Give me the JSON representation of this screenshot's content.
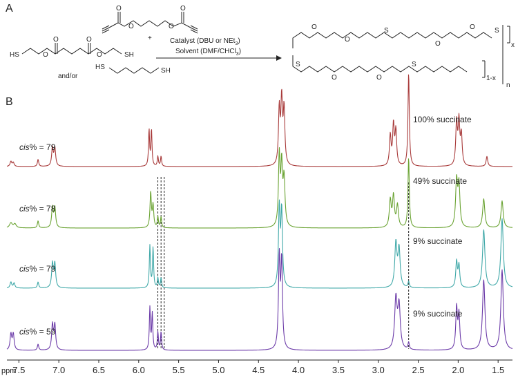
{
  "figure": {
    "panel_a_label": "A",
    "panel_b_label": "B"
  },
  "scheme": {
    "plus": "+",
    "and_or": "and/or",
    "sh": "SH",
    "hs": "HS",
    "o": "O",
    "s": "S",
    "x": "x",
    "one_minus_x": "1-x",
    "n": "n",
    "catalyst": [
      "Catalyst (DBU or NEt",
      "3",
      ")"
    ],
    "solvent": [
      "Solvent (DMF/CHCl",
      "3",
      ")"
    ]
  },
  "chart_data": {
    "type": "line",
    "title": "",
    "xlabel": "ppm",
    "ylabel": "",
    "xlim": [
      7.65,
      1.32
    ],
    "x_reversed": true,
    "ticks": [
      7.5,
      7.0,
      6.5,
      6.0,
      5.5,
      5.0,
      4.5,
      4.0,
      3.5,
      3.0,
      2.5,
      2.0,
      1.5
    ],
    "tick_labels": [
      "7.5",
      "7.0",
      "6.5",
      "6.0",
      "5.5",
      "5.0",
      "4.5",
      "4.0",
      "3.5",
      "3.0",
      "2.5",
      "2.0",
      "1.5"
    ],
    "reference_lines_ppm": [
      5.76,
      5.72,
      5.68,
      2.62
    ],
    "series": [
      {
        "name": "100% succinate",
        "cis_label": "cis% = 79",
        "color": "#a83a3a",
        "peaks": [
          [
            7.6,
            0.05,
            0.012
          ],
          [
            7.57,
            0.04,
            0.012
          ],
          [
            7.26,
            0.07,
            0.01
          ],
          [
            7.08,
            0.18,
            0.012
          ],
          [
            7.05,
            0.18,
            0.012
          ],
          [
            5.87,
            0.36,
            0.008
          ],
          [
            5.84,
            0.36,
            0.008
          ],
          [
            5.76,
            0.1,
            0.008
          ],
          [
            5.72,
            0.1,
            0.008
          ],
          [
            4.24,
            0.55,
            0.012
          ],
          [
            4.21,
            0.63,
            0.012
          ],
          [
            4.18,
            0.55,
            0.012
          ],
          [
            2.85,
            0.3,
            0.012
          ],
          [
            2.81,
            0.4,
            0.012
          ],
          [
            2.78,
            0.34,
            0.012
          ],
          [
            2.62,
            0.93,
            0.01
          ],
          [
            2.02,
            0.43,
            0.012
          ],
          [
            1.99,
            0.43,
            0.012
          ],
          [
            1.96,
            0.3,
            0.012
          ],
          [
            1.64,
            0.1,
            0.012
          ]
        ]
      },
      {
        "name": "49% succinate",
        "cis_label": "cis% = 78",
        "color": "#6aa332",
        "peaks": [
          [
            7.6,
            0.05,
            0.02
          ],
          [
            7.55,
            0.04,
            0.02
          ],
          [
            7.26,
            0.07,
            0.01
          ],
          [
            7.08,
            0.2,
            0.012
          ],
          [
            7.05,
            0.2,
            0.012
          ],
          [
            5.85,
            0.35,
            0.01
          ],
          [
            5.82,
            0.22,
            0.01
          ],
          [
            5.76,
            0.11,
            0.008
          ],
          [
            5.72,
            0.11,
            0.008
          ],
          [
            4.24,
            0.7,
            0.012
          ],
          [
            4.21,
            0.58,
            0.012
          ],
          [
            4.18,
            0.47,
            0.014
          ],
          [
            2.85,
            0.27,
            0.014
          ],
          [
            2.81,
            0.31,
            0.014
          ],
          [
            2.76,
            0.22,
            0.014
          ],
          [
            2.62,
            0.7,
            0.01
          ],
          [
            2.02,
            0.46,
            0.014
          ],
          [
            1.99,
            0.42,
            0.014
          ],
          [
            1.68,
            0.29,
            0.016
          ],
          [
            1.45,
            0.27,
            0.016
          ]
        ]
      },
      {
        "name": "9% succinate",
        "cis_label": "cis% = 79",
        "color": "#3fa8a8",
        "peaks": [
          [
            7.6,
            0.06,
            0.012
          ],
          [
            7.56,
            0.05,
            0.012
          ],
          [
            7.26,
            0.06,
            0.01
          ],
          [
            7.08,
            0.24,
            0.012
          ],
          [
            7.05,
            0.24,
            0.012
          ],
          [
            5.86,
            0.42,
            0.008
          ],
          [
            5.82,
            0.4,
            0.008
          ],
          [
            5.76,
            0.1,
            0.008
          ],
          [
            5.72,
            0.1,
            0.008
          ],
          [
            4.24,
            0.78,
            0.012
          ],
          [
            4.21,
            0.75,
            0.012
          ],
          [
            2.78,
            0.44,
            0.016
          ],
          [
            2.74,
            0.38,
            0.016
          ],
          [
            2.62,
            0.06,
            0.01
          ],
          [
            2.02,
            0.26,
            0.012
          ],
          [
            1.99,
            0.22,
            0.012
          ],
          [
            1.68,
            0.58,
            0.018
          ],
          [
            1.45,
            0.69,
            0.018
          ]
        ]
      },
      {
        "name": "9% succinate",
        "cis_label": "cis% = 59",
        "color": "#6b3aa8",
        "peaks": [
          [
            7.6,
            0.16,
            0.012
          ],
          [
            7.57,
            0.16,
            0.012
          ],
          [
            7.26,
            0.06,
            0.01
          ],
          [
            7.08,
            0.25,
            0.012
          ],
          [
            7.05,
            0.25,
            0.012
          ],
          [
            5.86,
            0.42,
            0.008
          ],
          [
            5.83,
            0.36,
            0.008
          ],
          [
            5.76,
            0.18,
            0.008
          ],
          [
            5.72,
            0.18,
            0.008
          ],
          [
            4.24,
            0.9,
            0.012
          ],
          [
            4.21,
            0.86,
            0.012
          ],
          [
            2.78,
            0.5,
            0.018
          ],
          [
            2.74,
            0.43,
            0.018
          ],
          [
            2.62,
            0.07,
            0.01
          ],
          [
            2.02,
            0.42,
            0.012
          ],
          [
            1.99,
            0.35,
            0.012
          ],
          [
            1.68,
            0.7,
            0.018
          ],
          [
            1.45,
            0.8,
            0.018
          ]
        ]
      }
    ]
  }
}
